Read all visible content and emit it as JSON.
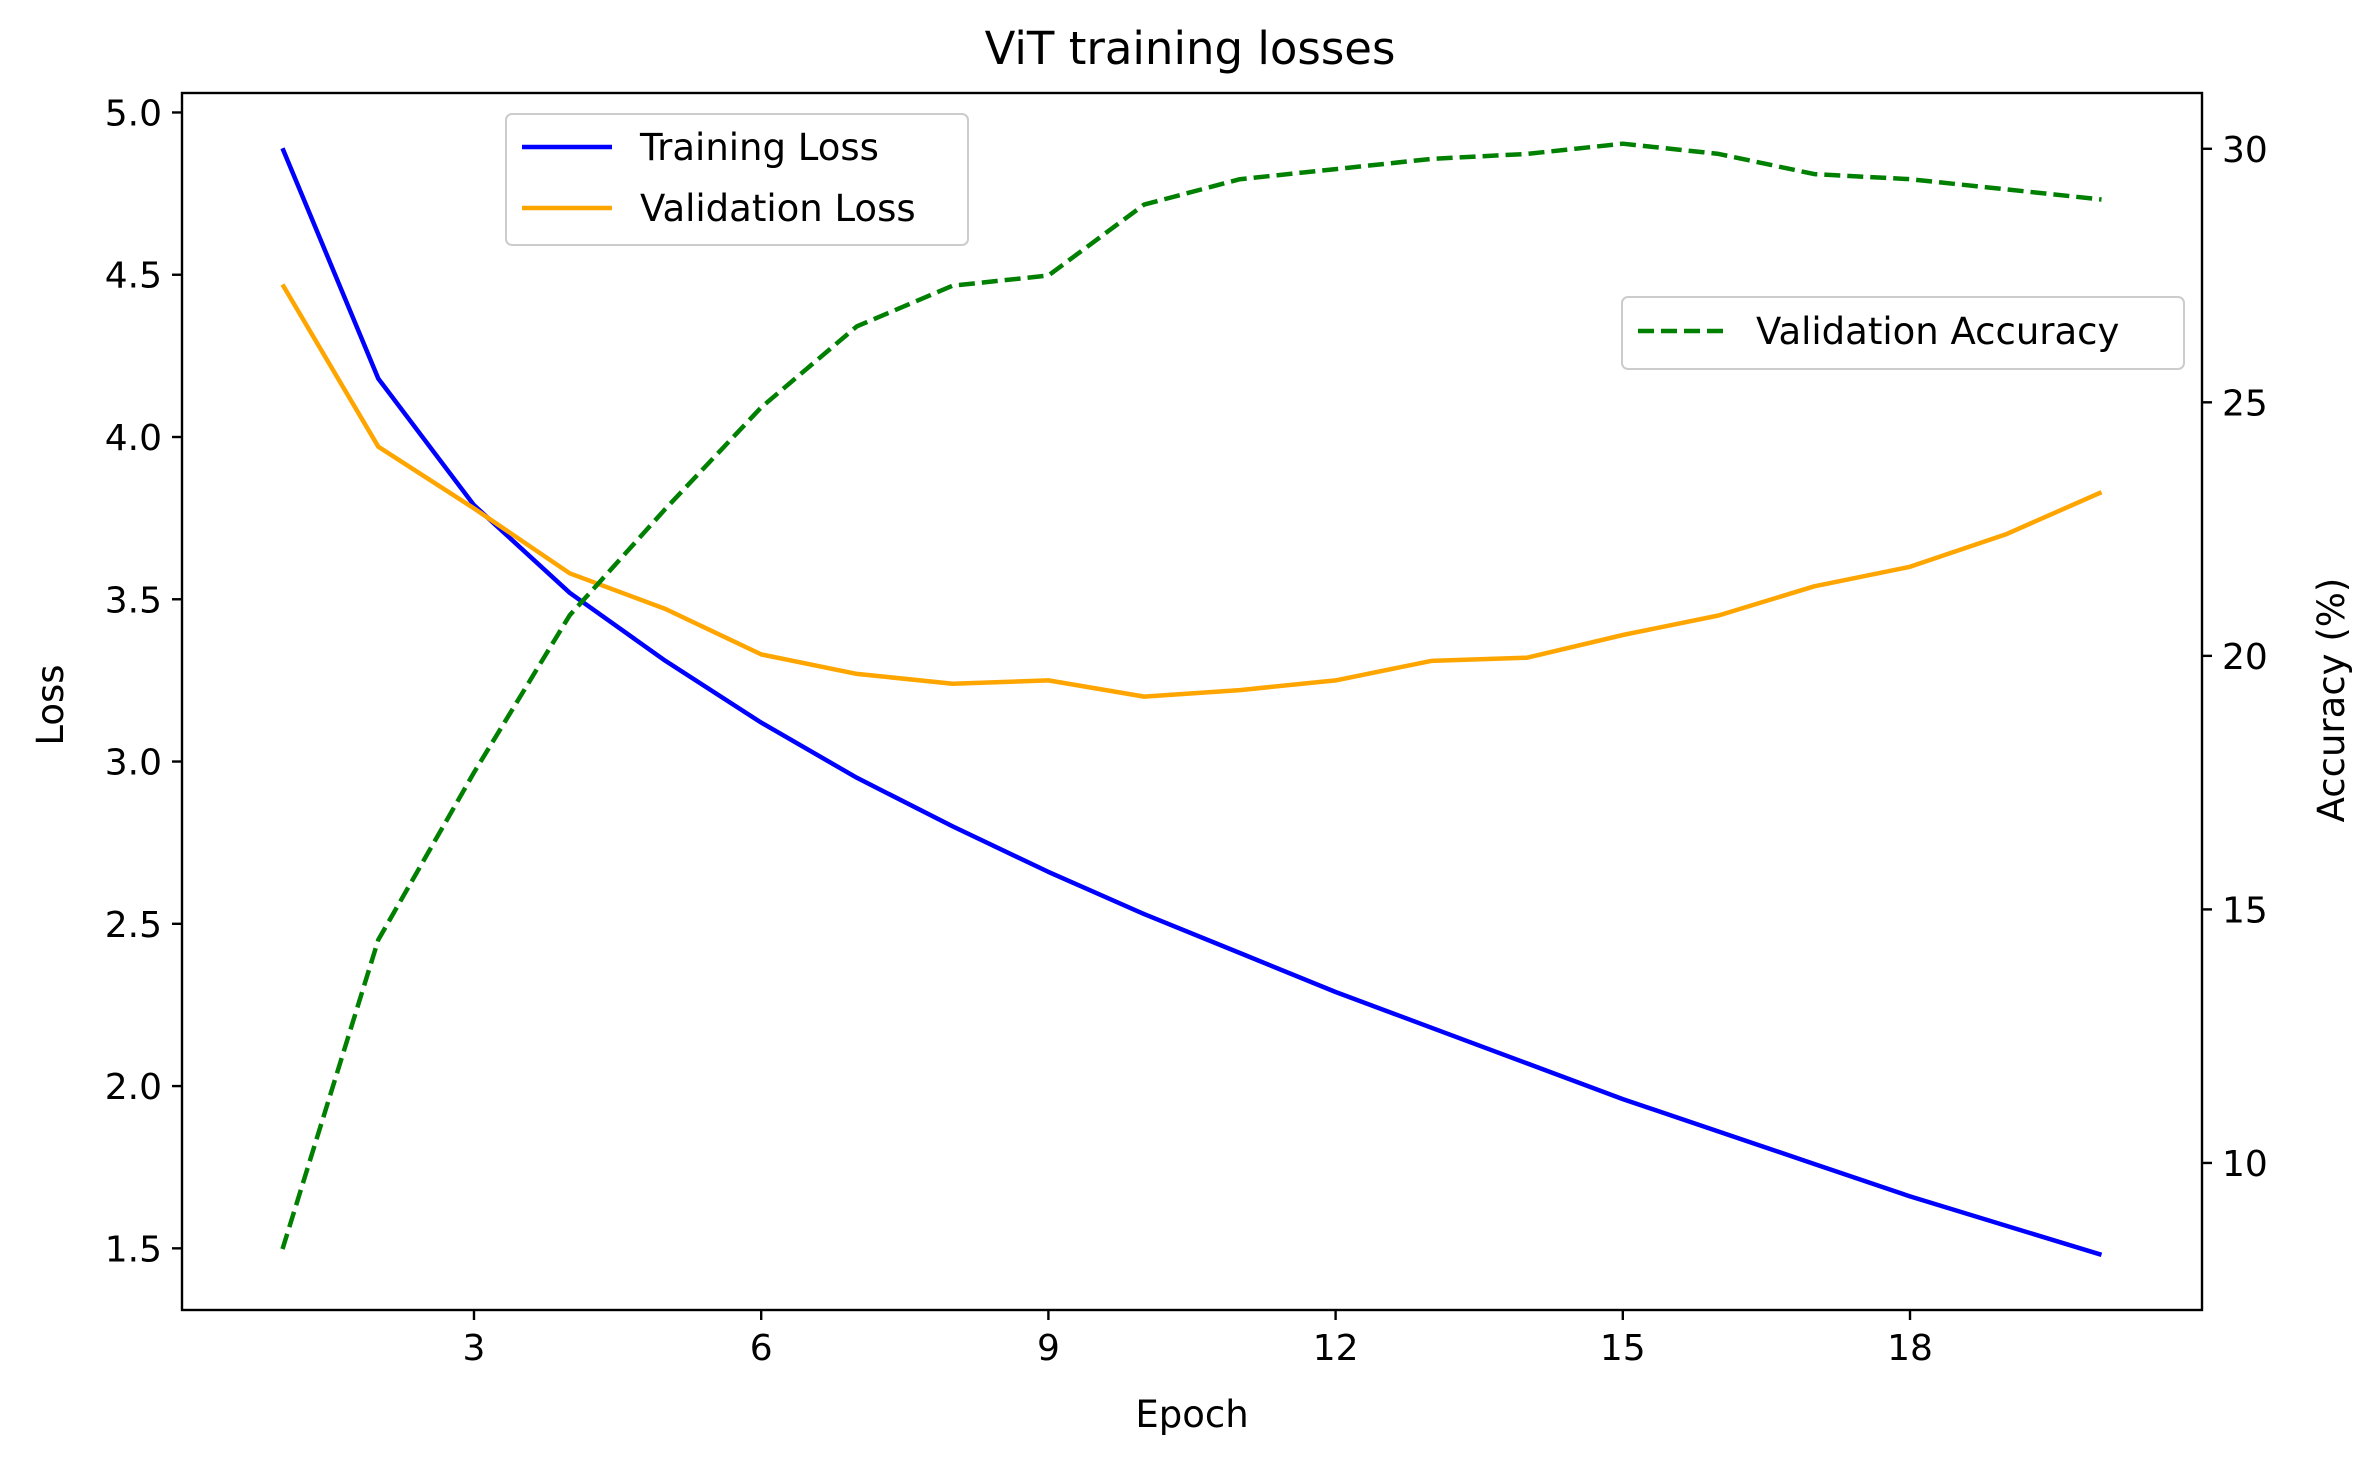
{
  "chart_data": {
    "type": "line",
    "title": "ViT training losses",
    "xlabel": "Epoch",
    "ylabel": "Loss",
    "y2label": "Accuracy (%)",
    "x": [
      1,
      2,
      3,
      4,
      5,
      6,
      7,
      8,
      9,
      10,
      11,
      12,
      13,
      14,
      15,
      16,
      17,
      18,
      19,
      20
    ],
    "xlim": [
      -0.05,
      21.05
    ],
    "ylim": [
      1.31,
      5.06
    ],
    "y2lim": [
      7.1,
      31.1
    ],
    "xticks": [
      3,
      6,
      9,
      12,
      15,
      18
    ],
    "yticks": [
      1.5,
      2.0,
      2.5,
      3.0,
      3.5,
      4.0,
      4.5,
      5.0
    ],
    "y2ticks": [
      10,
      15,
      20,
      25,
      30
    ],
    "grid": false,
    "series": [
      {
        "name": "Training Loss",
        "axis": "left",
        "color": "#0000ff",
        "style": "solid",
        "values": [
          4.89,
          4.18,
          3.79,
          3.52,
          3.31,
          3.12,
          2.95,
          2.8,
          2.66,
          2.53,
          2.41,
          2.29,
          2.18,
          2.07,
          1.96,
          1.86,
          1.76,
          1.66,
          1.57,
          1.48
        ]
      },
      {
        "name": "Validation Loss",
        "axis": "left",
        "color": "#ffa500",
        "style": "solid",
        "values": [
          4.47,
          3.97,
          3.78,
          3.58,
          3.47,
          3.33,
          3.27,
          3.24,
          3.25,
          3.2,
          3.22,
          3.25,
          3.31,
          3.32,
          3.39,
          3.45,
          3.54,
          3.6,
          3.7,
          3.83
        ]
      },
      {
        "name": "Validation Accuracy",
        "axis": "right",
        "color": "#008000",
        "style": "dashed",
        "values": [
          8.3,
          14.4,
          17.7,
          20.8,
          22.9,
          24.9,
          26.5,
          27.3,
          27.5,
          28.9,
          29.4,
          29.6,
          29.8,
          29.9,
          30.1,
          29.9,
          29.5,
          29.4,
          29.2,
          29.0
        ]
      }
    ],
    "legends": [
      {
        "placement": "upper-left",
        "entries": [
          "Training Loss",
          "Validation Loss"
        ]
      },
      {
        "placement": "center-right",
        "entries": [
          "Validation Accuracy"
        ]
      }
    ]
  }
}
